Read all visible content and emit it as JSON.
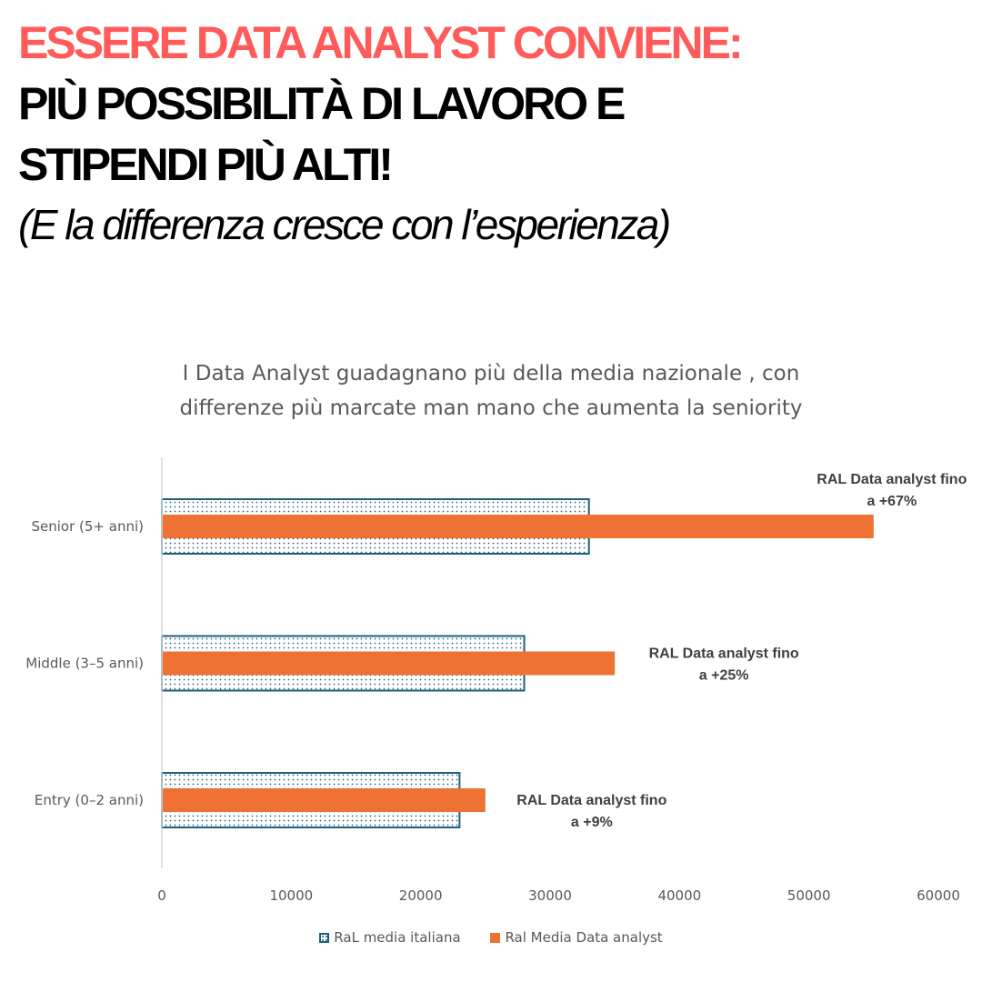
{
  "headline": {
    "line1": "ESSERE DATA ANALYST CONVIENE:",
    "line2": "PIÙ POSSIBILITÀ DI LAVORO E",
    "line3": "STIPENDI PIÙ ALTI!",
    "subtitle": "(E la differenza cresce con l’esperienza)"
  },
  "colors": {
    "headline_accent": "#ff5b5b",
    "series_italia": "#1f5f7a",
    "series_data_analyst": "#ed7233"
  },
  "chart_data": {
    "type": "bar",
    "orientation": "horizontal",
    "title": "I Data Analyst guadagnano più della media nazionale , con differenze più marcate man mano che aumenta la seniority",
    "title_lines": [
      "I Data Analyst guadagnano più della media nazionale , con",
      "differenze più marcate man mano che aumenta la seniority"
    ],
    "categories": [
      "Senior (5+ anni)",
      "Middle (3–5 anni)",
      "Entry (0–2 anni)"
    ],
    "series": [
      {
        "name": "RaL media italiana",
        "values": [
          33000,
          28000,
          23000
        ],
        "pattern": "dotted"
      },
      {
        "name": "Ral Media Data analyst",
        "values": [
          55000,
          35000,
          25000
        ]
      }
    ],
    "annotations": [
      [
        "RAL Data analyst fino",
        "a +67%"
      ],
      [
        "RAL Data analyst fino",
        "a +25%"
      ],
      [
        "RAL Data analyst fino",
        "a +9%"
      ]
    ],
    "x_ticks": [
      "0",
      "10000",
      "20000",
      "30000",
      "40000",
      "50000",
      "60000"
    ],
    "xlim": [
      0,
      60000
    ],
    "grid": false,
    "legend_position": "bottom"
  }
}
